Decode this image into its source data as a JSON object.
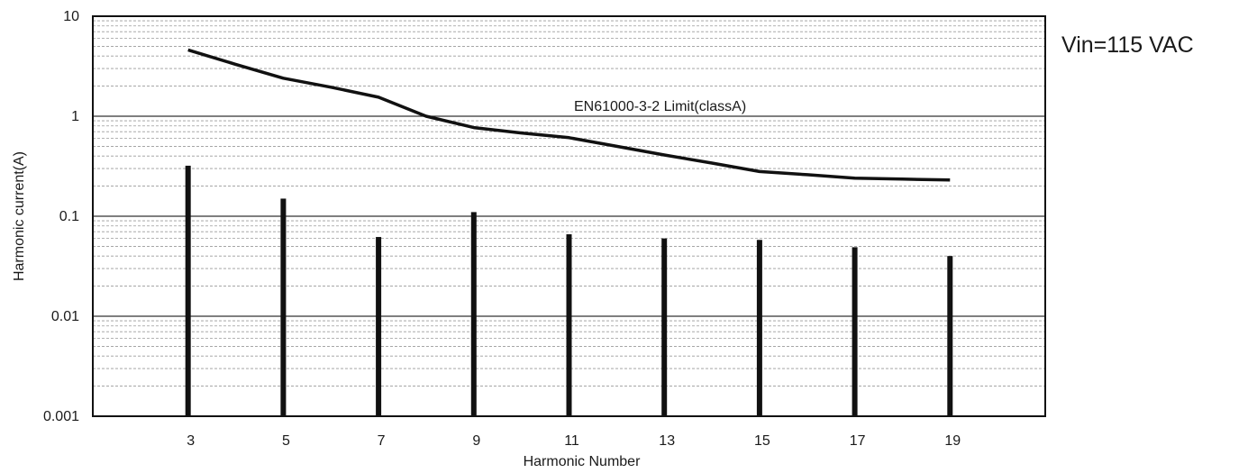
{
  "chart_data": {
    "type": "bar",
    "title": "",
    "xlabel": "Harmonic  Number",
    "ylabel": "Harmonic  current(A)",
    "y_scale": "log",
    "ylim": [
      0.001,
      10
    ],
    "xlim": [
      1,
      21
    ],
    "y_ticks": [
      "10",
      "1",
      "0.1",
      "0.01",
      "0.001"
    ],
    "x_ticks": [
      "3",
      "5",
      "7",
      "9",
      "11",
      "13",
      "15",
      "17",
      "19"
    ],
    "grid": true,
    "annotations": {
      "condition": "Vin=115 VAC",
      "limit_label": "EN61000-3-2 Limit(classA)"
    },
    "series": [
      {
        "type": "bar",
        "x": [
          3,
          5,
          7,
          9,
          11,
          13,
          15,
          17,
          19
        ],
        "values": [
          0.32,
          0.15,
          0.062,
          0.11,
          0.066,
          0.06,
          0.058,
          0.049,
          0.04
        ]
      },
      {
        "type": "line",
        "x": [
          3,
          4,
          5,
          6,
          7,
          8,
          9,
          10,
          11,
          12,
          13,
          14,
          15,
          16,
          17,
          18,
          19
        ],
        "values": [
          4.6,
          3.3,
          2.4,
          1.95,
          1.55,
          1.0,
          0.77,
          0.68,
          0.61,
          0.5,
          0.41,
          0.34,
          0.28,
          0.26,
          0.24,
          0.235,
          0.23
        ]
      }
    ]
  },
  "colors": {
    "ink": "#111111",
    "grid": "#9a9a9a"
  }
}
